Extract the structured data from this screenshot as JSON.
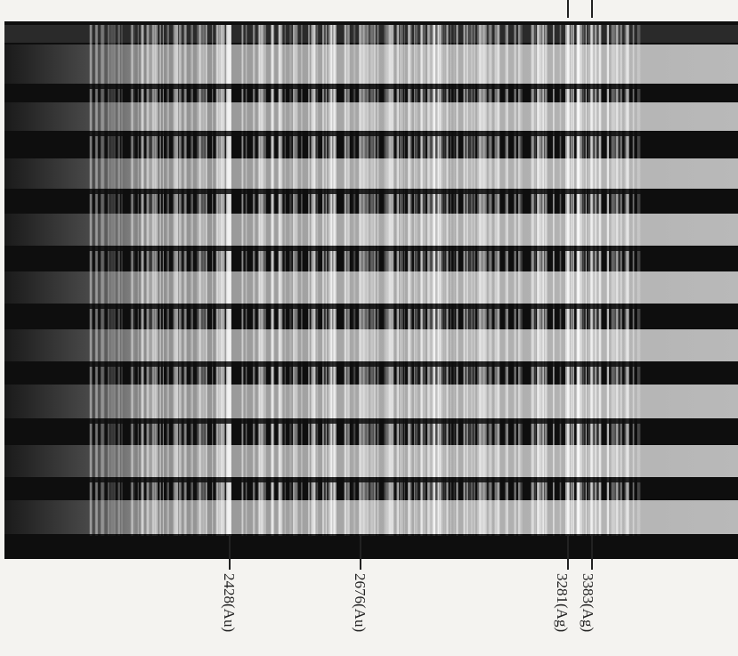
{
  "labels": [
    "2428(Au)",
    "2676(Au)",
    "3281(Ag)",
    "3383(Ag)"
  ]
}
